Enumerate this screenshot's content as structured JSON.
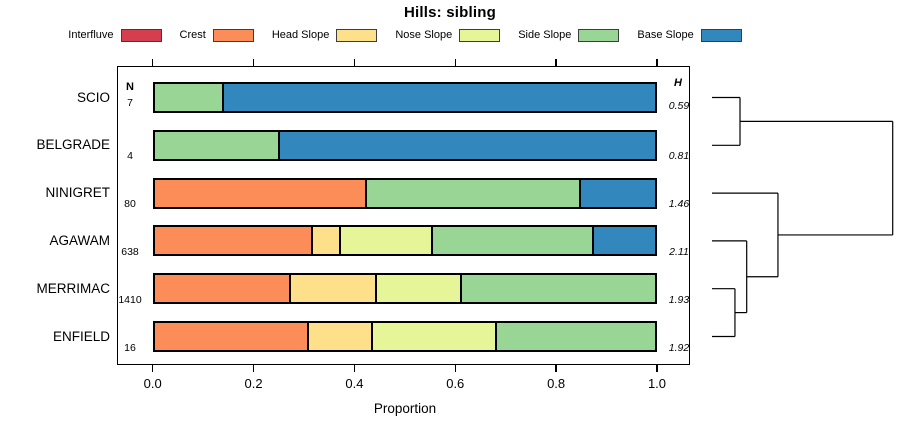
{
  "title": "Hills: sibling",
  "legend": [
    {
      "label": "Interfluve",
      "color": "#d53e4f"
    },
    {
      "label": "Crest",
      "color": "#fc8d59"
    },
    {
      "label": "Head Slope",
      "color": "#fee08b"
    },
    {
      "label": "Nose Slope",
      "color": "#e6f598"
    },
    {
      "label": "Side Slope",
      "color": "#99d594"
    },
    {
      "label": "Base Slope",
      "color": "#3288bd"
    }
  ],
  "columns": {
    "n_header": "N",
    "h_header": "H"
  },
  "chart_data": {
    "type": "bar",
    "variant": "horizontal-stacked-proportion",
    "title": "Hills: sibling",
    "xlabel": "Proportion",
    "xlim": [
      0,
      1
    ],
    "x_ticks": [
      "0.0",
      "0.2",
      "0.4",
      "0.6",
      "0.8",
      "1.0"
    ],
    "grid": false,
    "categories": [
      "Interfluve",
      "Crest",
      "Head Slope",
      "Nose Slope",
      "Side Slope",
      "Base Slope"
    ],
    "rows": [
      {
        "name": "SCIO",
        "n": "7",
        "h": "0.59",
        "segments": [
          {
            "category": "Side Slope",
            "value": 0.142
          },
          {
            "category": "Base Slope",
            "value": 0.858
          }
        ]
      },
      {
        "name": "BELGRADE",
        "n": "4",
        "h": "0.81",
        "segments": [
          {
            "category": "Side Slope",
            "value": 0.252
          },
          {
            "category": "Base Slope",
            "value": 0.748
          }
        ]
      },
      {
        "name": "NINIGRET",
        "n": "80",
        "h": "1.46",
        "segments": [
          {
            "category": "Crest",
            "value": 0.424
          },
          {
            "category": "Side Slope",
            "value": 0.425
          },
          {
            "category": "Base Slope",
            "value": 0.151
          }
        ]
      },
      {
        "name": "AGAWAM",
        "n": "638",
        "h": "2.11",
        "segments": [
          {
            "category": "Crest",
            "value": 0.317
          },
          {
            "category": "Head Slope",
            "value": 0.057
          },
          {
            "category": "Nose Slope",
            "value": 0.182
          },
          {
            "category": "Side Slope",
            "value": 0.32
          },
          {
            "category": "Base Slope",
            "value": 0.124
          }
        ]
      },
      {
        "name": "MERRIMAC",
        "n": "1410",
        "h": "1.93",
        "segments": [
          {
            "category": "Crest",
            "value": 0.274
          },
          {
            "category": "Head Slope",
            "value": 0.17
          },
          {
            "category": "Nose Slope",
            "value": 0.169
          },
          {
            "category": "Side Slope",
            "value": 0.387
          }
        ]
      },
      {
        "name": "ENFIELD",
        "n": "16",
        "h": "1.92",
        "segments": [
          {
            "category": "Crest",
            "value": 0.31
          },
          {
            "category": "Head Slope",
            "value": 0.126
          },
          {
            "category": "Nose Slope",
            "value": 0.247
          },
          {
            "category": "Side Slope",
            "value": 0.317
          }
        ]
      }
    ]
  },
  "dendrogram": {
    "leaf_order": [
      "SCIO",
      "BELGRADE",
      "NINIGRET",
      "AGAWAM",
      "MERRIMAC",
      "ENFIELD"
    ],
    "tree": {
      "h": 1.0,
      "children": [
        {
          "h": 0.155,
          "children": [
            {
              "leaf": "SCIO"
            },
            {
              "leaf": "BELGRADE"
            }
          ]
        },
        {
          "h": 0.365,
          "children": [
            {
              "leaf": "NINIGRET"
            },
            {
              "h": 0.192,
              "children": [
                {
                  "leaf": "AGAWAM"
                },
                {
                  "h": 0.127,
                  "children": [
                    {
                      "leaf": "MERRIMAC"
                    },
                    {
                      "leaf": "ENFIELD"
                    }
                  ]
                }
              ]
            }
          ]
        }
      ]
    }
  }
}
